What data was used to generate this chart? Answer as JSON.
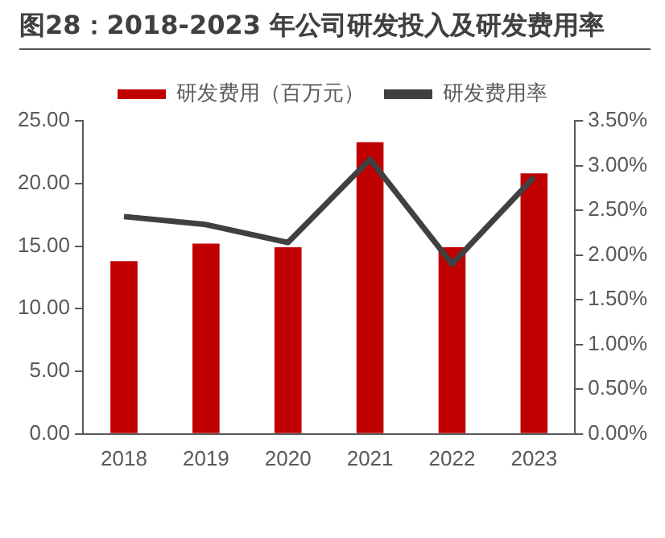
{
  "chart_data": {
    "type": "bar",
    "title": "图28：2018-2023 年公司研发投入及研发费用率",
    "categories": [
      "2018",
      "2019",
      "2020",
      "2021",
      "2022",
      "2023"
    ],
    "series": [
      {
        "name": "研发费用（百万元）",
        "color": "#c00000",
        "values": [
          13.8,
          15.2,
          14.9,
          23.3,
          14.9,
          20.8
        ]
      },
      {
        "name": "研发费用率",
        "type": "line",
        "axis": "y2",
        "color": "#404040",
        "marker": "none",
        "values": [
          2.43,
          2.34,
          2.14,
          3.07,
          1.9,
          2.87
        ]
      }
    ],
    "ylim": [
      0,
      25
    ],
    "yticks": [
      {
        "value": 0,
        "label": "0.00"
      },
      {
        "value": 5,
        "label": "5.00"
      },
      {
        "value": 10,
        "label": "10.00"
      },
      {
        "value": 15,
        "label": "15.00"
      },
      {
        "value": 20,
        "label": "20.00"
      },
      {
        "value": 25,
        "label": "25.00"
      }
    ],
    "y2lim": [
      0,
      3.5
    ],
    "y2ticks": [
      {
        "value": 0,
        "label": "0.00%"
      },
      {
        "value": 0.5,
        "label": "0.50%"
      },
      {
        "value": 1,
        "label": "1.00%"
      },
      {
        "value": 1.5,
        "label": "1.50%"
      },
      {
        "value": 2,
        "label": "2.00%"
      },
      {
        "value": 2.5,
        "label": "2.50%"
      },
      {
        "value": 3,
        "label": "3.00%"
      },
      {
        "value": 3.5,
        "label": "3.50%"
      }
    ],
    "grid": false,
    "legend": "top"
  }
}
